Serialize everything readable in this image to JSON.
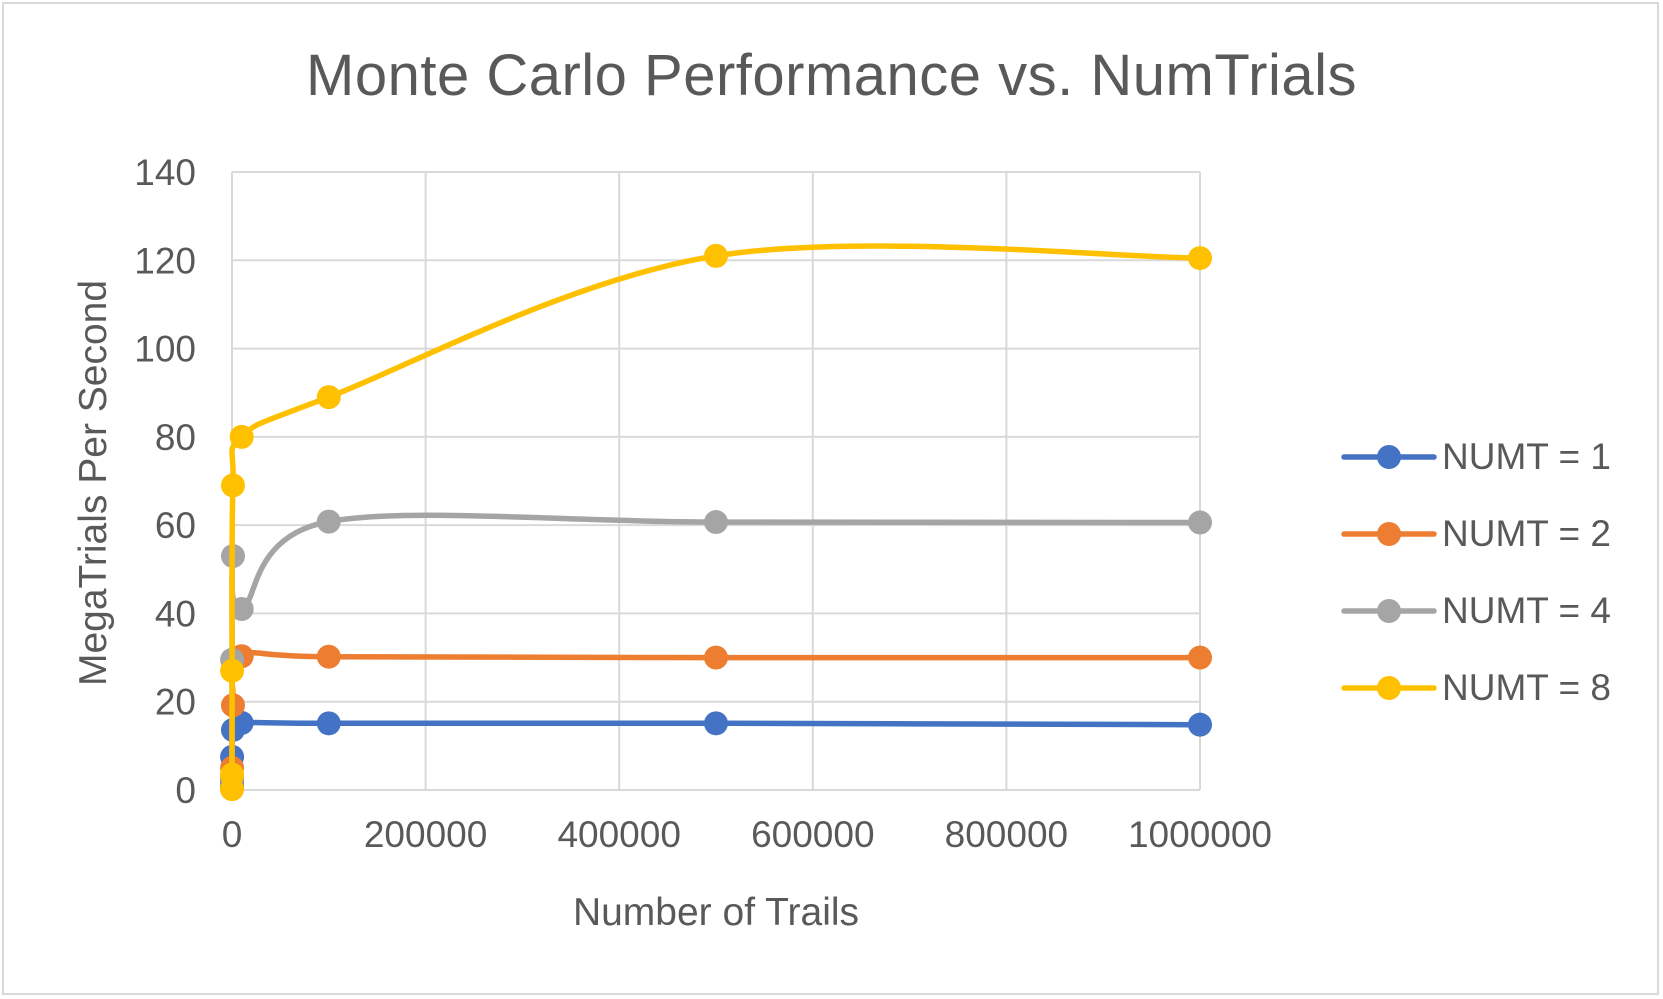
{
  "chart_data": {
    "type": "line",
    "title": "Monte Carlo Performance vs. NumTrials",
    "xlabel": "Number of Trails",
    "ylabel": "MegaTrials Per Second",
    "xlim": [
      0,
      1000000
    ],
    "ylim": [
      0,
      140
    ],
    "xticks": [
      "0",
      "200000",
      "400000",
      "600000",
      "800000",
      "1000000"
    ],
    "yticks": [
      "0",
      "20",
      "40",
      "60",
      "80",
      "100",
      "120",
      "140"
    ],
    "grid": true,
    "legend_position": "right",
    "smooth": true,
    "x": [
      1,
      10,
      100,
      1000,
      10000,
      100000,
      500000,
      1000000
    ],
    "series": [
      {
        "name": "NUMT = 1",
        "color": "#4472C4",
        "values": [
          0.5,
          1.5,
          7.5,
          13.6,
          15.2,
          15.1,
          15.1,
          14.8
        ]
      },
      {
        "name": "NUMT = 2",
        "color": "#ED7D31",
        "values": [
          0.3,
          2.5,
          5.0,
          19.2,
          30.3,
          30.2,
          30.0,
          30.0
        ]
      },
      {
        "name": "NUMT = 4",
        "color": "#A5A5A5",
        "values": [
          0.5,
          3.0,
          29.5,
          53.0,
          41.0,
          60.8,
          60.7,
          60.6
        ]
      },
      {
        "name": "NUMT = 8",
        "color": "#FFC000",
        "values": [
          0.2,
          3.5,
          27.0,
          69.0,
          80.0,
          89.0,
          121.0,
          120.5
        ]
      }
    ]
  }
}
